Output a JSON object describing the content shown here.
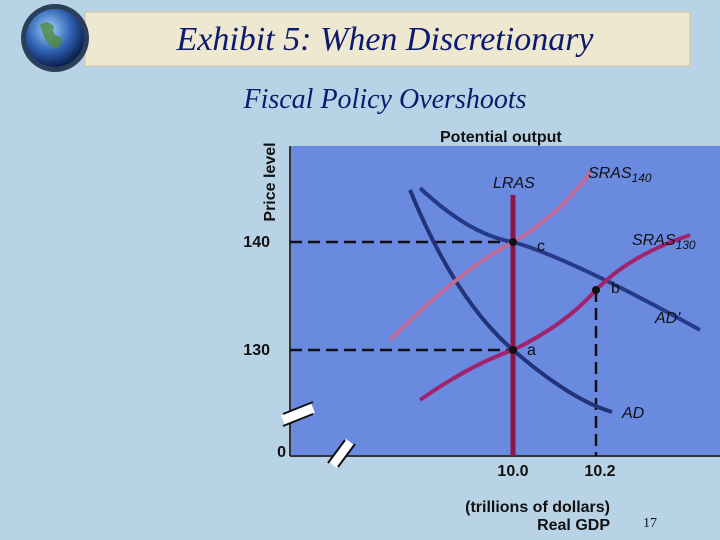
{
  "header": {
    "title": "Exhibit 5: When Discretionary",
    "subtitle": "Fiscal Policy Overshoots"
  },
  "diagram": {
    "y_axis_label": "Price level",
    "top_label": "Potential output",
    "y_ticks": [
      "140",
      "130",
      "0"
    ],
    "x_ticks": [
      "10.0",
      "10.2"
    ],
    "x_axis_label": {
      "unit": "(trillions of dollars)",
      "name": "Real GDP"
    },
    "curves": [
      {
        "name": "LRAS"
      },
      {
        "name": "SRAS",
        "subscript": "140"
      },
      {
        "name": "SRAS",
        "subscript": "130"
      },
      {
        "name": "AD'"
      },
      {
        "name": "AD"
      }
    ],
    "points": [
      "c",
      "b",
      "a"
    ]
  },
  "page_number": "17"
}
